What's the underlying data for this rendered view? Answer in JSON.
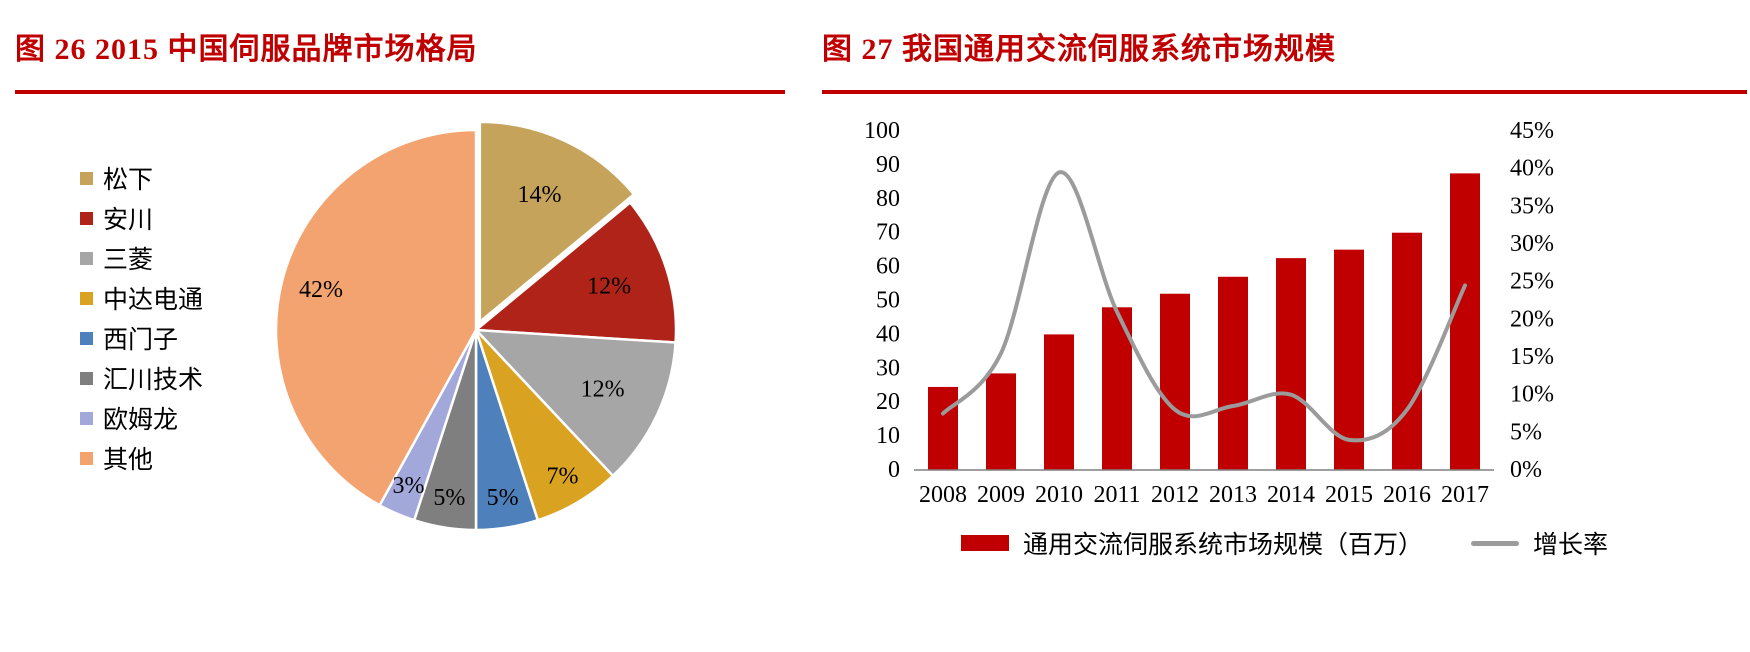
{
  "colors": {
    "accent": "#C00000",
    "background": "#FFFFFF",
    "axis_text": "#000000"
  },
  "chart_data": [
    {
      "type": "pie",
      "figure_label": "图 26",
      "title": "图 26 2015 中国伺服品牌市场格局",
      "legend_position": "left",
      "labels": [
        "松下",
        "安川",
        "三菱",
        "中达电通",
        "西门子",
        "汇川技术",
        "欧姆龙",
        "其他"
      ],
      "values": [
        14,
        12,
        12,
        7,
        5,
        5,
        3,
        42
      ],
      "data_labels": [
        "14%",
        "12%",
        "12%",
        "7%",
        "5%",
        "5%",
        "3%",
        "42%"
      ],
      "colors": [
        "#C6A35B",
        "#B02318",
        "#A6A6A6",
        "#D9A321",
        "#4E80BC",
        "#7F7F7F",
        "#A3A8DB",
        "#F3A36F"
      ],
      "exploded_slice": 0,
      "start_angle_deg": -90,
      "direction": "clockwise"
    },
    {
      "type": "bar+line",
      "figure_label": "图 27",
      "title": "图 27 我国通用交流伺服系统市场规模",
      "categories": [
        "2008",
        "2009",
        "2010",
        "2011",
        "2012",
        "2013",
        "2014",
        "2015",
        "2016",
        "2017"
      ],
      "series": [
        {
          "name": "通用交流伺服系统市场规模（百万）",
          "kind": "bar",
          "axis": "left",
          "color": "#C00000",
          "values": [
            24.5,
            28.5,
            40,
            48,
            52,
            57,
            62.5,
            65,
            70,
            87.5
          ]
        },
        {
          "name": "增长率",
          "kind": "line",
          "axis": "right",
          "color": "#9B9B9B",
          "values": [
            0.075,
            0.155,
            0.395,
            0.21,
            0.08,
            0.085,
            0.1,
            0.04,
            0.08,
            0.245
          ]
        }
      ],
      "left_axis": {
        "min": 0,
        "max": 100,
        "step": 10,
        "ticks": [
          "0",
          "10",
          "20",
          "30",
          "40",
          "50",
          "60",
          "70",
          "80",
          "90",
          "100"
        ]
      },
      "right_axis": {
        "min": 0,
        "max": 0.45,
        "step": 0.05,
        "ticks": [
          "0%",
          "5%",
          "10%",
          "15%",
          "20%",
          "25%",
          "30%",
          "35%",
          "40%",
          "45%"
        ]
      },
      "legend_position": "bottom"
    }
  ]
}
